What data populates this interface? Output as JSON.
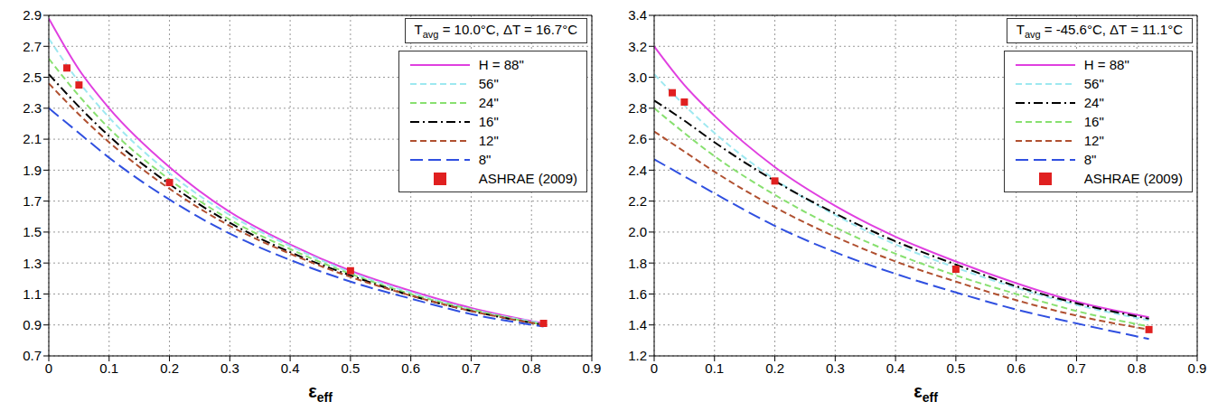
{
  "chart_data": [
    {
      "type": "line",
      "annotation": [
        {
          "text": "T"
        },
        {
          "text": "avg",
          "sub": true
        },
        {
          "text": " = 10.0°C, ΔT = 16.7°C"
        }
      ],
      "x_label": {
        "text": "ε",
        "sub": "eff"
      },
      "xlim": [
        0,
        0.9
      ],
      "xticks": [
        0,
        0.1,
        0.2,
        0.3,
        0.4,
        0.5,
        0.6,
        0.7,
        0.8,
        0.9
      ],
      "ylim": [
        0.7,
        2.9
      ],
      "yticks": [
        0.7,
        0.9,
        1.1,
        1.3,
        1.5,
        1.7,
        1.9,
        2.1,
        2.3,
        2.5,
        2.7,
        2.9
      ],
      "grid": true,
      "legend": "upper right",
      "series": [
        {
          "name": "H = 88\"",
          "color": "#e040e0",
          "line_style": "solid",
          "x": [
            0,
            0.05,
            0.1,
            0.2,
            0.3,
            0.4,
            0.5,
            0.6,
            0.7,
            0.82
          ],
          "values": [
            2.88,
            2.55,
            2.3,
            1.92,
            1.63,
            1.42,
            1.25,
            1.12,
            1.01,
            0.91
          ]
        },
        {
          "name": "56\"",
          "color": "#9ee8f0",
          "line_style": "dashed",
          "x": [
            0,
            0.05,
            0.1,
            0.2,
            0.3,
            0.4,
            0.5,
            0.6,
            0.7,
            0.82
          ],
          "values": [
            2.75,
            2.47,
            2.24,
            1.88,
            1.61,
            1.41,
            1.24,
            1.11,
            1.0,
            0.91
          ]
        },
        {
          "name": "24\"",
          "color": "#88e070",
          "line_style": "dashed",
          "x": [
            0,
            0.05,
            0.1,
            0.2,
            0.3,
            0.4,
            0.5,
            0.6,
            0.7,
            0.82
          ],
          "values": [
            2.62,
            2.38,
            2.17,
            1.84,
            1.58,
            1.39,
            1.23,
            1.1,
            1.0,
            0.9
          ]
        },
        {
          "name": "16\"",
          "color": "#000000",
          "line_style": "dashdot",
          "x": [
            0,
            0.05,
            0.1,
            0.2,
            0.3,
            0.4,
            0.5,
            0.6,
            0.7,
            0.82
          ],
          "values": [
            2.52,
            2.31,
            2.12,
            1.81,
            1.56,
            1.37,
            1.22,
            1.09,
            0.99,
            0.9
          ]
        },
        {
          "name": "12\"",
          "color": "#b05030",
          "line_style": "dashed",
          "x": [
            0,
            0.05,
            0.1,
            0.2,
            0.3,
            0.4,
            0.5,
            0.6,
            0.7,
            0.82
          ],
          "values": [
            2.46,
            2.26,
            2.08,
            1.78,
            1.54,
            1.36,
            1.21,
            1.09,
            0.99,
            0.9
          ]
        },
        {
          "name": "8\"",
          "color": "#3050e0",
          "line_style": "longdash",
          "x": [
            0,
            0.05,
            0.1,
            0.2,
            0.3,
            0.4,
            0.5,
            0.6,
            0.7,
            0.82
          ],
          "values": [
            2.3,
            2.14,
            1.98,
            1.71,
            1.49,
            1.32,
            1.18,
            1.07,
            0.97,
            0.89
          ]
        },
        {
          "name": "ASHRAE (2009)",
          "type": "scatter",
          "marker": "square",
          "color": "#e02020",
          "x": [
            0.03,
            0.05,
            0.2,
            0.5,
            0.82
          ],
          "values": [
            2.56,
            2.45,
            1.82,
            1.25,
            0.91
          ]
        }
      ]
    },
    {
      "type": "line",
      "annotation": [
        {
          "text": "T"
        },
        {
          "text": "avg",
          "sub": true
        },
        {
          "text": " = -45.6°C, ΔT = 11.1°C"
        }
      ],
      "x_label": {
        "text": "ε",
        "sub": "eff"
      },
      "xlim": [
        0,
        0.9
      ],
      "xticks": [
        0,
        0.1,
        0.2,
        0.3,
        0.4,
        0.5,
        0.6,
        0.7,
        0.8,
        0.9
      ],
      "ylim": [
        1.2,
        3.4
      ],
      "yticks": [
        1.2,
        1.4,
        1.6,
        1.8,
        {
          "value": 2,
          "label": "2.0"
        },
        2.2,
        2.4,
        2.6,
        2.8,
        {
          "value": 3,
          "label": "3.0"
        },
        3.2,
        3.4
      ],
      "grid": true,
      "legend": "upper right",
      "series": [
        {
          "name": "H = 88\"",
          "color": "#e040e0",
          "line_style": "solid",
          "x": [
            0,
            0.05,
            0.1,
            0.2,
            0.3,
            0.4,
            0.5,
            0.6,
            0.7,
            0.82
          ],
          "values": [
            3.2,
            2.95,
            2.75,
            2.42,
            2.17,
            1.97,
            1.81,
            1.67,
            1.55,
            1.45
          ]
        },
        {
          "name": "56\"",
          "color": "#9ee8f0",
          "line_style": "dashed",
          "x": [
            0,
            0.05,
            0.1,
            0.2,
            0.3,
            0.4,
            0.5,
            0.6,
            0.7,
            0.82
          ],
          "values": [
            3.02,
            2.82,
            2.64,
            2.34,
            2.11,
            1.92,
            1.77,
            1.64,
            1.53,
            1.43
          ]
        },
        {
          "name": "24\"",
          "color": "#000000",
          "line_style": "dashdot",
          "x": [
            0,
            0.05,
            0.1,
            0.2,
            0.3,
            0.4,
            0.5,
            0.6,
            0.7,
            0.82
          ],
          "values": [
            2.85,
            2.72,
            2.58,
            2.33,
            2.12,
            1.94,
            1.79,
            1.65,
            1.54,
            1.44
          ]
        },
        {
          "name": "16\"",
          "color": "#88e070",
          "line_style": "dashed",
          "x": [
            0,
            0.05,
            0.1,
            0.2,
            0.3,
            0.4,
            0.5,
            0.6,
            0.7,
            0.82
          ],
          "values": [
            2.8,
            2.64,
            2.49,
            2.24,
            2.03,
            1.86,
            1.72,
            1.6,
            1.49,
            1.39
          ]
        },
        {
          "name": "12\"",
          "color": "#b05030",
          "line_style": "dashed",
          "x": [
            0,
            0.05,
            0.1,
            0.2,
            0.3,
            0.4,
            0.5,
            0.6,
            0.7,
            0.82
          ],
          "values": [
            2.65,
            2.52,
            2.39,
            2.16,
            1.97,
            1.81,
            1.68,
            1.56,
            1.46,
            1.37
          ]
        },
        {
          "name": "8\"",
          "color": "#3050e0",
          "line_style": "longdash",
          "x": [
            0,
            0.05,
            0.1,
            0.2,
            0.3,
            0.4,
            0.5,
            0.6,
            0.7,
            0.82
          ],
          "values": [
            2.47,
            2.36,
            2.25,
            2.04,
            1.87,
            1.73,
            1.61,
            1.5,
            1.41,
            1.31
          ]
        },
        {
          "name": "ASHRAE (2009)",
          "type": "scatter",
          "marker": "square",
          "color": "#e02020",
          "x": [
            0.03,
            0.05,
            0.2,
            0.5,
            0.82
          ],
          "values": [
            2.9,
            2.84,
            2.33,
            1.76,
            1.37
          ]
        }
      ]
    }
  ]
}
